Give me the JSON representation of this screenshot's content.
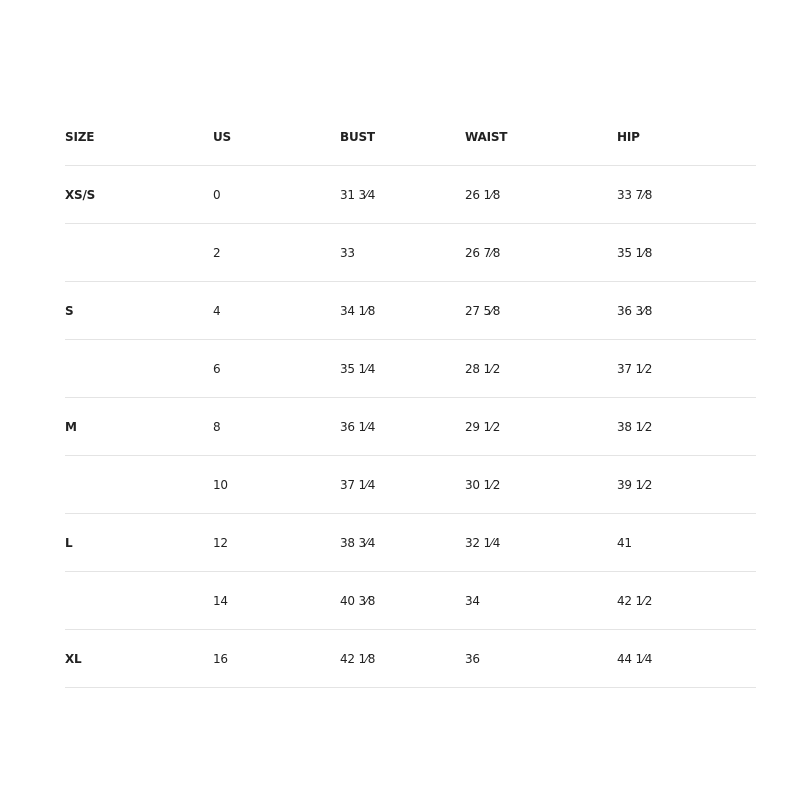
{
  "size_chart": {
    "headers": [
      "SIZE",
      "US",
      "BUST",
      "WAIST",
      "HIP"
    ],
    "rows": [
      [
        "XS/S",
        "0",
        "31 3⁄4",
        "26 1⁄8",
        "33 7⁄8"
      ],
      [
        "",
        "2",
        "33",
        "26 7⁄8",
        "35 1⁄8"
      ],
      [
        "S",
        "4",
        "34 1⁄8",
        "27 5⁄8",
        "36 3⁄8"
      ],
      [
        "",
        "6",
        "35 1⁄4",
        "28 1⁄2",
        "37 1⁄2"
      ],
      [
        "M",
        "8",
        "36 1⁄4",
        "29 1⁄2",
        "38 1⁄2"
      ],
      [
        "",
        "10",
        "37 1⁄4",
        "30 1⁄2",
        "39 1⁄2"
      ],
      [
        "L",
        "12",
        "38 3⁄4",
        "32 1⁄4",
        "41"
      ],
      [
        "",
        "14",
        "40 3⁄8",
        "34",
        "42 1⁄2"
      ],
      [
        "XL",
        "16",
        "42 1⁄8",
        "36",
        "44 1⁄4"
      ]
    ]
  }
}
